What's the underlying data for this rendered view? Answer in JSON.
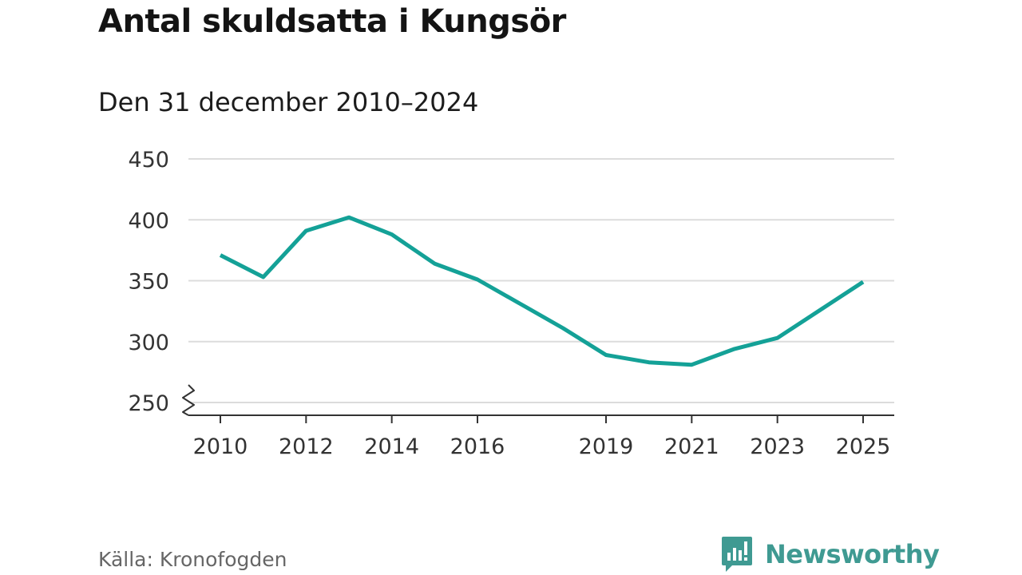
{
  "colors": {
    "line": "#14a197",
    "grid": "#dcdcdc",
    "axis": "#333333",
    "brand": "#3f9a92"
  },
  "chart_data": {
    "type": "line",
    "title": "Antal skuldsatta i Kungsör",
    "subtitle": "Den 31 december 2010–2024",
    "xlabel": "",
    "ylabel": "",
    "xlim": [
      2010,
      2025
    ],
    "ylim": [
      250,
      450
    ],
    "y_axis_break": true,
    "grid": true,
    "x_ticks": [
      2010,
      2012,
      2014,
      2016,
      2019,
      2021,
      2023,
      2025
    ],
    "y_ticks": [
      250,
      300,
      350,
      400,
      450
    ],
    "series": [
      {
        "name": "Antal skuldsatta",
        "x": [
          2010,
          2011,
          2012,
          2013,
          2014,
          2015,
          2016,
          2017,
          2018,
          2019,
          2020,
          2021,
          2022,
          2023,
          2024,
          2025
        ],
        "values": [
          371,
          353,
          391,
          402,
          388,
          364,
          351,
          331,
          311,
          289,
          283,
          281,
          294,
          303,
          326,
          349
        ]
      }
    ]
  },
  "footer": {
    "source": "Källa: Kronofogden",
    "brand_name": "Newsworthy",
    "brand_logo_icon": "newsworthy-logo-icon"
  }
}
